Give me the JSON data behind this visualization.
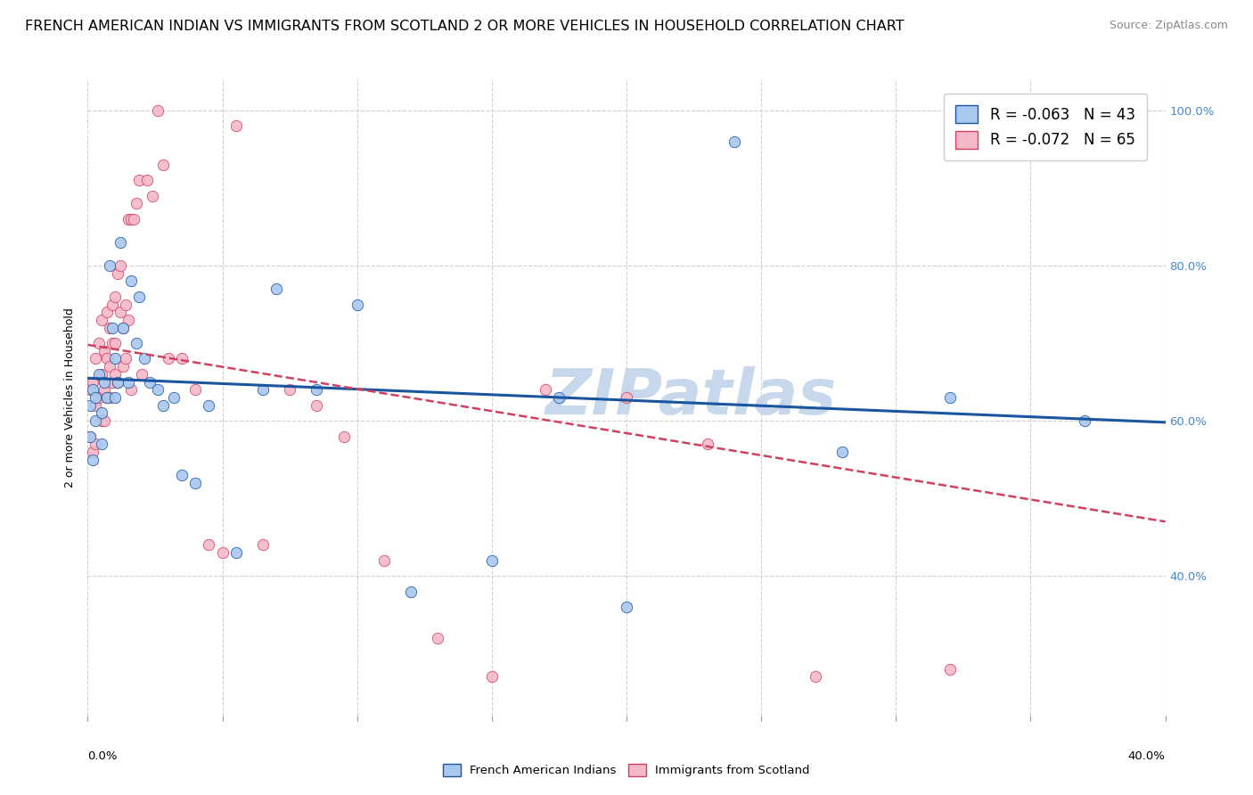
{
  "title": "FRENCH AMERICAN INDIAN VS IMMIGRANTS FROM SCOTLAND 2 OR MORE VEHICLES IN HOUSEHOLD CORRELATION CHART",
  "source": "Source: ZipAtlas.com",
  "ylabel": "2 or more Vehicles in Household",
  "x_min": 0.0,
  "x_max": 0.4,
  "y_min": 0.22,
  "y_max": 1.04,
  "legend_blue_r": "R = -0.063",
  "legend_blue_n": "N = 43",
  "legend_pink_r": "R = -0.072",
  "legend_pink_n": "N = 65",
  "blue_scatter_x": [
    0.001,
    0.001,
    0.002,
    0.002,
    0.003,
    0.003,
    0.004,
    0.005,
    0.005,
    0.006,
    0.007,
    0.008,
    0.009,
    0.01,
    0.01,
    0.011,
    0.012,
    0.013,
    0.015,
    0.016,
    0.018,
    0.019,
    0.021,
    0.023,
    0.026,
    0.028,
    0.032,
    0.035,
    0.04,
    0.045,
    0.055,
    0.065,
    0.07,
    0.085,
    0.1,
    0.12,
    0.15,
    0.175,
    0.2,
    0.24,
    0.28,
    0.32,
    0.37
  ],
  "blue_scatter_y": [
    0.62,
    0.58,
    0.64,
    0.55,
    0.63,
    0.6,
    0.66,
    0.61,
    0.57,
    0.65,
    0.63,
    0.8,
    0.72,
    0.68,
    0.63,
    0.65,
    0.83,
    0.72,
    0.65,
    0.78,
    0.7,
    0.76,
    0.68,
    0.65,
    0.64,
    0.62,
    0.63,
    0.53,
    0.52,
    0.62,
    0.43,
    0.64,
    0.77,
    0.64,
    0.75,
    0.38,
    0.42,
    0.63,
    0.36,
    0.96,
    0.56,
    0.63,
    0.6
  ],
  "pink_scatter_x": [
    0.001,
    0.001,
    0.002,
    0.002,
    0.003,
    0.003,
    0.003,
    0.004,
    0.004,
    0.005,
    0.005,
    0.005,
    0.006,
    0.006,
    0.006,
    0.007,
    0.007,
    0.007,
    0.008,
    0.008,
    0.008,
    0.009,
    0.009,
    0.009,
    0.01,
    0.01,
    0.01,
    0.011,
    0.011,
    0.012,
    0.012,
    0.013,
    0.013,
    0.014,
    0.014,
    0.015,
    0.015,
    0.016,
    0.016,
    0.017,
    0.018,
    0.019,
    0.02,
    0.022,
    0.024,
    0.026,
    0.028,
    0.03,
    0.035,
    0.04,
    0.045,
    0.05,
    0.055,
    0.065,
    0.075,
    0.085,
    0.095,
    0.11,
    0.13,
    0.15,
    0.17,
    0.2,
    0.23,
    0.27,
    0.32
  ],
  "pink_scatter_y": [
    0.64,
    0.58,
    0.65,
    0.56,
    0.68,
    0.62,
    0.57,
    0.7,
    0.63,
    0.66,
    0.73,
    0.6,
    0.69,
    0.64,
    0.6,
    0.74,
    0.68,
    0.63,
    0.72,
    0.67,
    0.63,
    0.75,
    0.7,
    0.65,
    0.76,
    0.7,
    0.66,
    0.79,
    0.65,
    0.8,
    0.74,
    0.72,
    0.67,
    0.75,
    0.68,
    0.86,
    0.73,
    0.86,
    0.64,
    0.86,
    0.88,
    0.91,
    0.66,
    0.91,
    0.89,
    1.0,
    0.93,
    0.68,
    0.68,
    0.64,
    0.44,
    0.43,
    0.98,
    0.44,
    0.64,
    0.62,
    0.58,
    0.42,
    0.32,
    0.27,
    0.64,
    0.63,
    0.57,
    0.27,
    0.28
  ],
  "blue_line_x": [
    0.0,
    0.4
  ],
  "blue_line_y": [
    0.655,
    0.598
  ],
  "pink_line_x": [
    0.0,
    0.4
  ],
  "pink_line_y": [
    0.698,
    0.47
  ],
  "scatter_size": 80,
  "blue_color": "#a8c8f0",
  "pink_color": "#f5b8c8",
  "blue_line_color": "#1a55a0",
  "pink_line_color": "#d04060",
  "grid_color": "#d0d0d0",
  "background_color": "#ffffff",
  "title_fontsize": 11.5,
  "source_fontsize": 9,
  "axis_label_fontsize": 9,
  "tick_fontsize": 9.5,
  "legend_fontsize": 12,
  "watermark": "ZIPatlas",
  "watermark_color": "#c8d8ec",
  "watermark_fontsize": 52,
  "yticks": [
    0.4,
    0.6,
    0.8,
    1.0
  ],
  "ytick_labels": [
    "40.0%",
    "60.0%",
    "80.0%",
    "100.0%"
  ],
  "right_tick_color": "#4488cc"
}
